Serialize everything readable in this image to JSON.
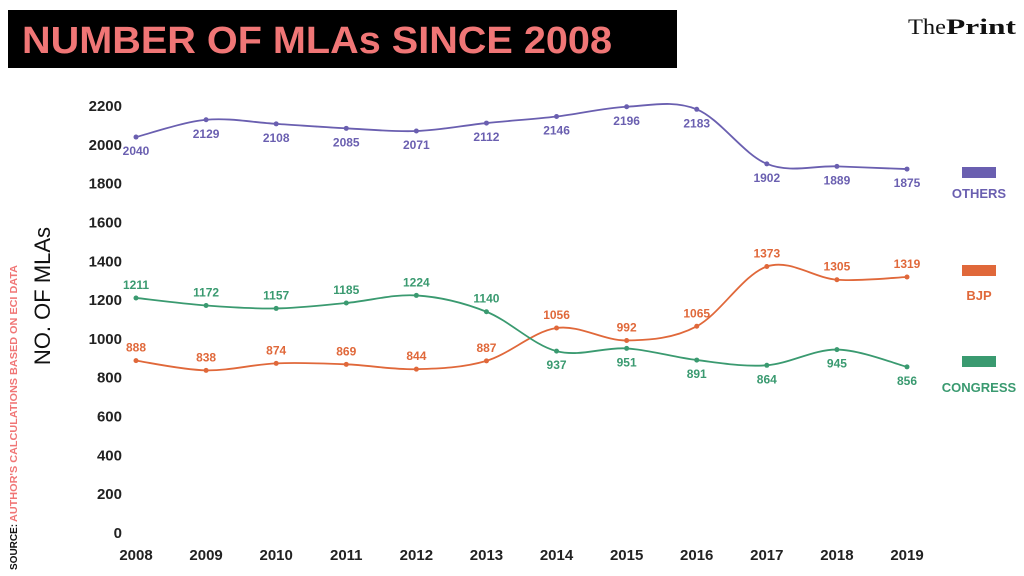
{
  "header": {
    "title": "NUMBER OF MLAs SINCE 2008",
    "brand_light": "The",
    "brand_bold": "Print"
  },
  "source": {
    "label": "SOURCE:",
    "text": "AUTHOR'S CALCULATIONS BASED ON ECI DATA"
  },
  "chart_data": {
    "type": "line",
    "title": "NUMBER OF MLAs SINCE 2008",
    "xlabel": "",
    "ylabel": "NO. OF MLAs",
    "x": [
      "2008",
      "2009",
      "2010",
      "2011",
      "2012",
      "2013",
      "2014",
      "2015",
      "2016",
      "2017",
      "2018",
      "2019"
    ],
    "ylim": [
      0,
      2200
    ],
    "yticks": [
      0,
      200,
      400,
      600,
      800,
      1000,
      1200,
      1400,
      1600,
      1800,
      2000,
      2200
    ],
    "grid": false,
    "legend_placement": "right",
    "series": [
      {
        "name": "OTHERS",
        "color": "#6a5fb0",
        "values": [
          2040,
          2129,
          2108,
          2085,
          2071,
          2112,
          2146,
          2196,
          2183,
          1902,
          1889,
          1875
        ]
      },
      {
        "name": "BJP",
        "color": "#e0683a",
        "values": [
          888,
          838,
          874,
          869,
          844,
          887,
          1056,
          992,
          1065,
          1373,
          1305,
          1319
        ]
      },
      {
        "name": "CONGRESS",
        "color": "#3a9a70",
        "values": [
          1211,
          1172,
          1157,
          1185,
          1224,
          1140,
          937,
          951,
          891,
          864,
          945,
          856
        ]
      }
    ]
  }
}
